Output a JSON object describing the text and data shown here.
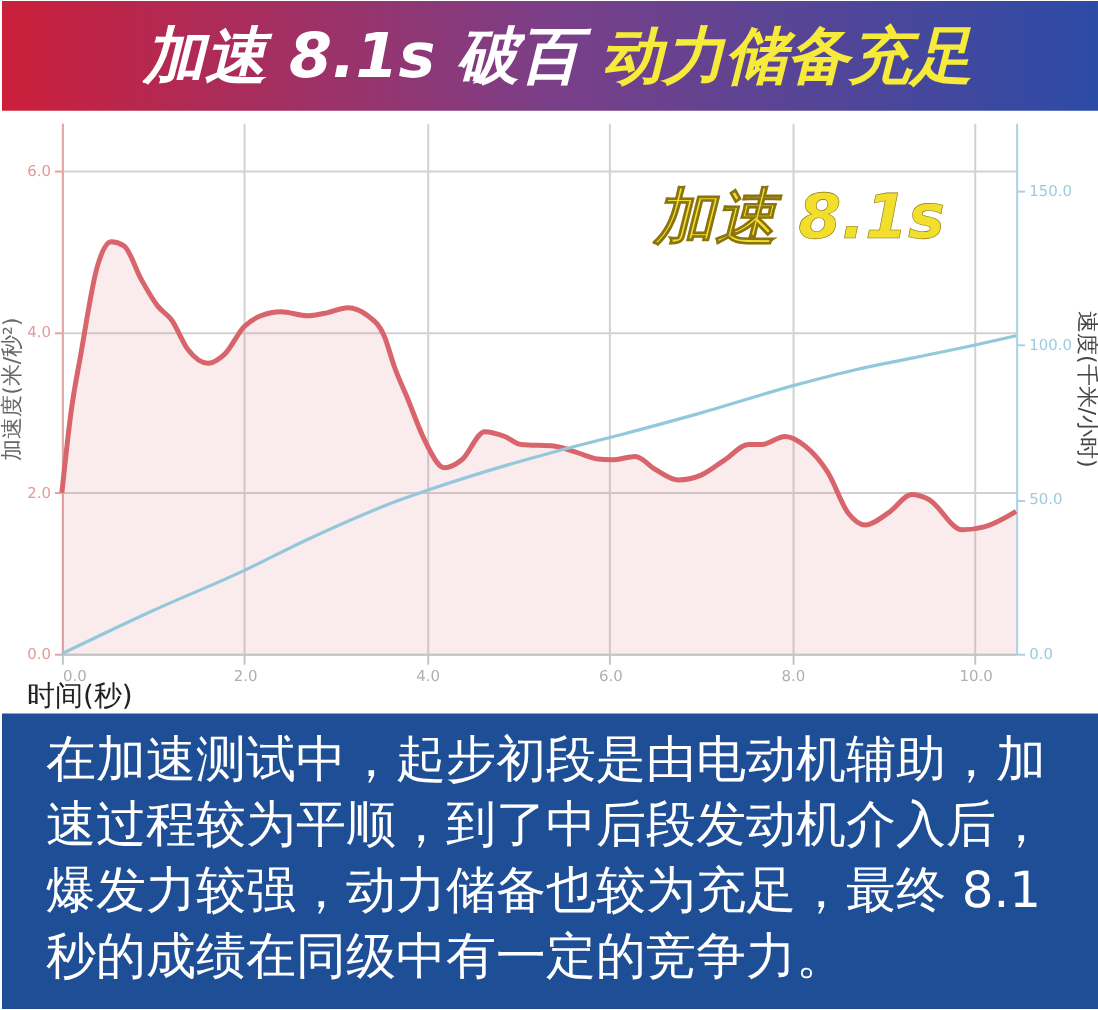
{
  "chart_data": {
    "type": "area",
    "title": "加速 8.1s 破百",
    "subtitle": "动力储备充足",
    "xlabel": "时间(秒)",
    "ylabel": "加速度(米/秒²)",
    "y2label": "速度(千米/小时)",
    "annotations": [
      "加速 8.1s",
      "在加速测试中，起步初段是由电动机辅助，加速过程较为平顺，到了中后段发动机介入后，爆发力较强，动力储备也较为充足，最终 8.1秒的成绩在同级中有一定的竞争力。"
    ],
    "series": [
      {
        "type": "area",
        "color": "#d9656c",
        "x": [
          0,
          0.1,
          0.21,
          0.39,
          0.54,
          0.68,
          0.87,
          1.05,
          1.2,
          1.38,
          1.6,
          1.78,
          2.0,
          2.18,
          2.4,
          2.69,
          2.91,
          3.13,
          3.35,
          3.53,
          3.64,
          3.79,
          3.97,
          4.19,
          4.38,
          4.63,
          4.85,
          5.03,
          5.4,
          5.62,
          5.87,
          6.02,
          6.28,
          6.5,
          6.75,
          7.0,
          7.26,
          7.52,
          7.66,
          7.92,
          8.14,
          8.39,
          8.61,
          8.8,
          9.05,
          9.31,
          9.49,
          9.86,
          10.11,
          10.45
        ],
        "values": [
          2.0,
          3.0,
          3.74,
          4.82,
          5.12,
          5.07,
          4.65,
          4.32,
          4.15,
          3.78,
          3.61,
          3.72,
          4.07,
          4.2,
          4.25,
          4.2,
          4.24,
          4.3,
          4.2,
          3.95,
          3.57,
          3.16,
          2.66,
          2.31,
          2.41,
          2.76,
          2.7,
          2.6,
          2.58,
          2.51,
          2.42,
          2.41,
          2.45,
          2.29,
          2.16,
          2.22,
          2.41,
          2.6,
          2.6,
          2.7,
          2.58,
          2.25,
          1.75,
          1.6,
          1.75,
          1.98,
          1.92,
          1.54,
          1.58,
          1.77
        ]
      },
      {
        "type": "line",
        "axis": "y2",
        "color": "#93c8dc",
        "x": [
          0,
          1.0,
          2.0,
          2.69,
          3.72,
          4.01,
          5.1,
          5.47,
          6.13,
          7.0,
          8.03,
          8.69,
          9.35,
          10.0,
          10.45
        ],
        "values": [
          0,
          14,
          27,
          37,
          50,
          53,
          63,
          66,
          71,
          78,
          87,
          92,
          96,
          100,
          103
        ]
      }
    ],
    "xlim": [
      0,
      10.45
    ],
    "xticks": [
      {
        "value": 0,
        "label": "0.0"
      },
      {
        "value": 2,
        "label": "2.0"
      },
      {
        "value": 4,
        "label": "4.0"
      },
      {
        "value": 6,
        "label": "6.0"
      },
      {
        "value": 8,
        "label": "8.0"
      },
      {
        "value": 10,
        "label": "10.0"
      }
    ],
    "ylim": [
      0,
      6.6
    ],
    "yticks": [
      {
        "value": 0,
        "label": "0.0"
      },
      {
        "value": 2,
        "label": "2.0"
      },
      {
        "value": 4,
        "label": "4.0"
      },
      {
        "value": 6,
        "label": "6.0"
      }
    ],
    "y2lim": [
      0,
      172
    ],
    "y2ticks": [
      {
        "value": 0,
        "label": "0.0"
      },
      {
        "value": 50,
        "label": "50.0"
      },
      {
        "value": 100,
        "label": "100.0"
      },
      {
        "value": 150,
        "label": "150.0"
      }
    ],
    "grid": true
  }
}
